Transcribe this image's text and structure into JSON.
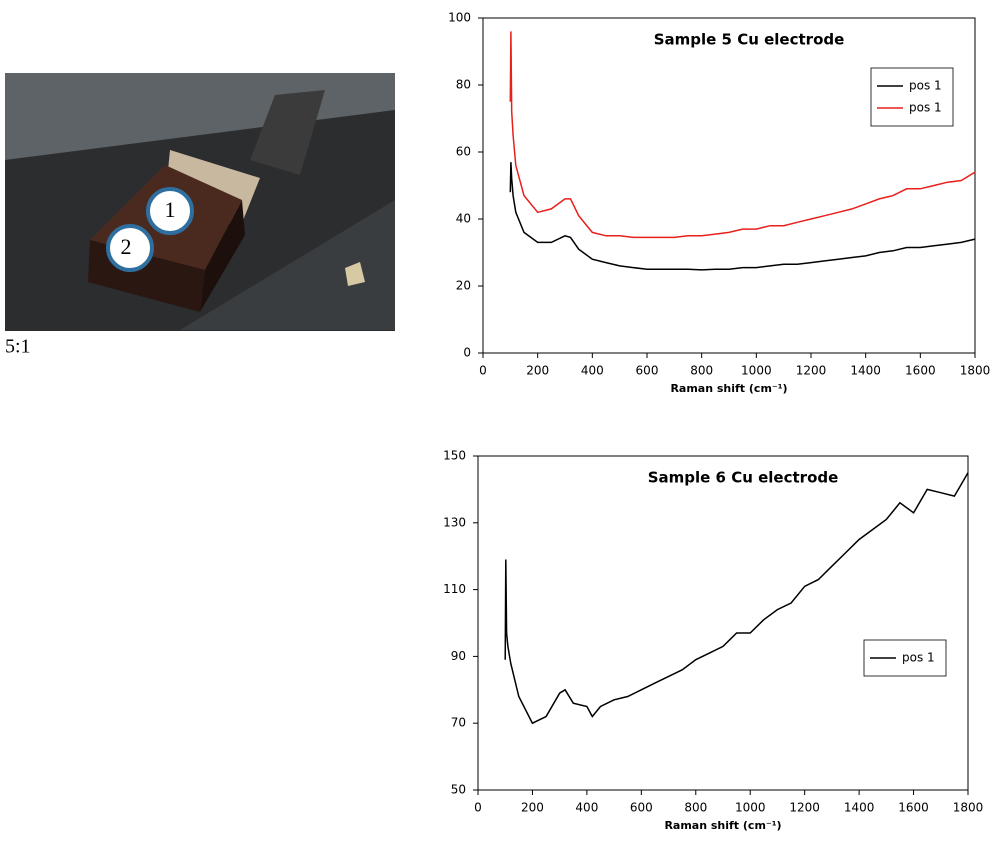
{
  "photo": {
    "markers": [
      "1",
      "2"
    ],
    "caption": "5:1"
  },
  "chart_data": [
    {
      "type": "line",
      "title": "Sample 5 Cu electrode",
      "xlabel": "Raman shift (cm⁻¹)",
      "x": [
        100,
        102,
        105,
        110,
        120,
        150,
        200,
        250,
        300,
        320,
        350,
        400,
        450,
        500,
        550,
        600,
        650,
        700,
        750,
        800,
        850,
        900,
        950,
        1000,
        1050,
        1100,
        1150,
        1200,
        1250,
        1300,
        1350,
        1400,
        1450,
        1500,
        1550,
        1600,
        1650,
        1700,
        1750,
        1800
      ],
      "series": [
        {
          "name": "pos 1",
          "color": "#000000",
          "values": [
            48,
            57,
            52,
            47,
            42,
            36,
            33,
            33,
            35,
            34.5,
            31,
            28,
            27,
            26,
            25.5,
            25,
            25,
            25,
            25,
            24.8,
            25,
            25,
            25.5,
            25.5,
            26,
            26.5,
            26.5,
            27,
            27.5,
            28,
            28.5,
            29,
            30,
            30.5,
            31.5,
            31.5,
            32,
            32.5,
            33,
            34
          ]
        },
        {
          "name": "pos 1",
          "color": "#e8201c",
          "values": [
            75,
            96,
            72,
            65,
            56,
            47,
            42,
            43,
            46,
            46,
            41,
            36,
            35,
            35,
            34.5,
            34.5,
            34.5,
            34.5,
            35,
            35,
            35.5,
            36,
            37,
            37,
            38,
            38,
            39,
            40,
            41,
            42,
            43,
            44.5,
            46,
            47,
            49,
            49,
            50,
            51,
            51.5,
            54
          ]
        }
      ],
      "xlim": [
        0,
        1800
      ],
      "xticks": [
        0,
        200,
        400,
        600,
        800,
        1000,
        1200,
        1400,
        1600,
        1800
      ],
      "ylim": [
        0,
        100
      ],
      "yticks": [
        0,
        20,
        40,
        60,
        80,
        100
      ],
      "legend": "upper right"
    },
    {
      "type": "line",
      "title": "Sample 6 Cu electrode",
      "xlabel": "Raman shift (cm⁻¹)",
      "x": [
        100,
        102,
        105,
        110,
        120,
        150,
        200,
        250,
        300,
        320,
        350,
        400,
        420,
        450,
        500,
        550,
        600,
        650,
        700,
        750,
        800,
        850,
        900,
        950,
        1000,
        1050,
        1100,
        1150,
        1200,
        1250,
        1300,
        1350,
        1400,
        1450,
        1500,
        1550,
        1600,
        1650,
        1700,
        1750,
        1800
      ],
      "series": [
        {
          "name": "pos 1",
          "color": "#000000",
          "values": [
            89,
            119,
            97,
            93,
            88,
            78,
            70,
            72,
            79,
            80,
            76,
            75,
            72,
            75,
            77,
            78,
            80,
            82,
            84,
            86,
            89,
            91,
            93,
            97,
            97,
            101,
            104,
            106,
            111,
            113,
            117,
            121,
            125,
            128,
            131,
            136,
            133,
            140,
            139,
            138,
            145
          ]
        }
      ],
      "xlim": [
        0,
        1800
      ],
      "xticks": [
        0,
        200,
        400,
        600,
        800,
        1000,
        1200,
        1400,
        1600,
        1800
      ],
      "ylim": [
        50,
        150
      ],
      "yticks": [
        50,
        70,
        90,
        110,
        130,
        150
      ],
      "legend": "center right"
    }
  ]
}
